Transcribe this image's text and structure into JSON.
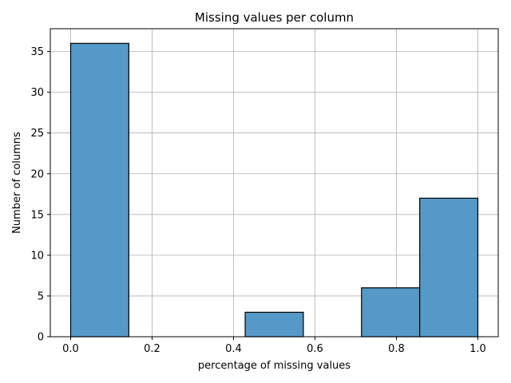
{
  "chart_data": {
    "type": "bar",
    "title": "Missing values per column",
    "xlabel": "percentage of missing values",
    "ylabel": "Number of columns",
    "bin_edges": [
      0.0,
      0.142857,
      0.285714,
      0.428571,
      0.571429,
      0.714286,
      0.857143,
      1.0
    ],
    "values": [
      36,
      0,
      0,
      3,
      0,
      6,
      17
    ],
    "xlim": [
      -0.05,
      1.05
    ],
    "ylim": [
      0,
      37.8
    ],
    "xticks": [
      0.0,
      0.2,
      0.4,
      0.6,
      0.8,
      1.0
    ],
    "xtick_labels": [
      "0.0",
      "0.2",
      "0.4",
      "0.6",
      "0.8",
      "1.0"
    ],
    "yticks": [
      0,
      5,
      10,
      15,
      20,
      25,
      30,
      35
    ],
    "ytick_labels": [
      "0",
      "5",
      "10",
      "15",
      "20",
      "25",
      "30",
      "35"
    ],
    "grid": true,
    "bar_color": "#5499c7",
    "edge_color": "#000000"
  }
}
